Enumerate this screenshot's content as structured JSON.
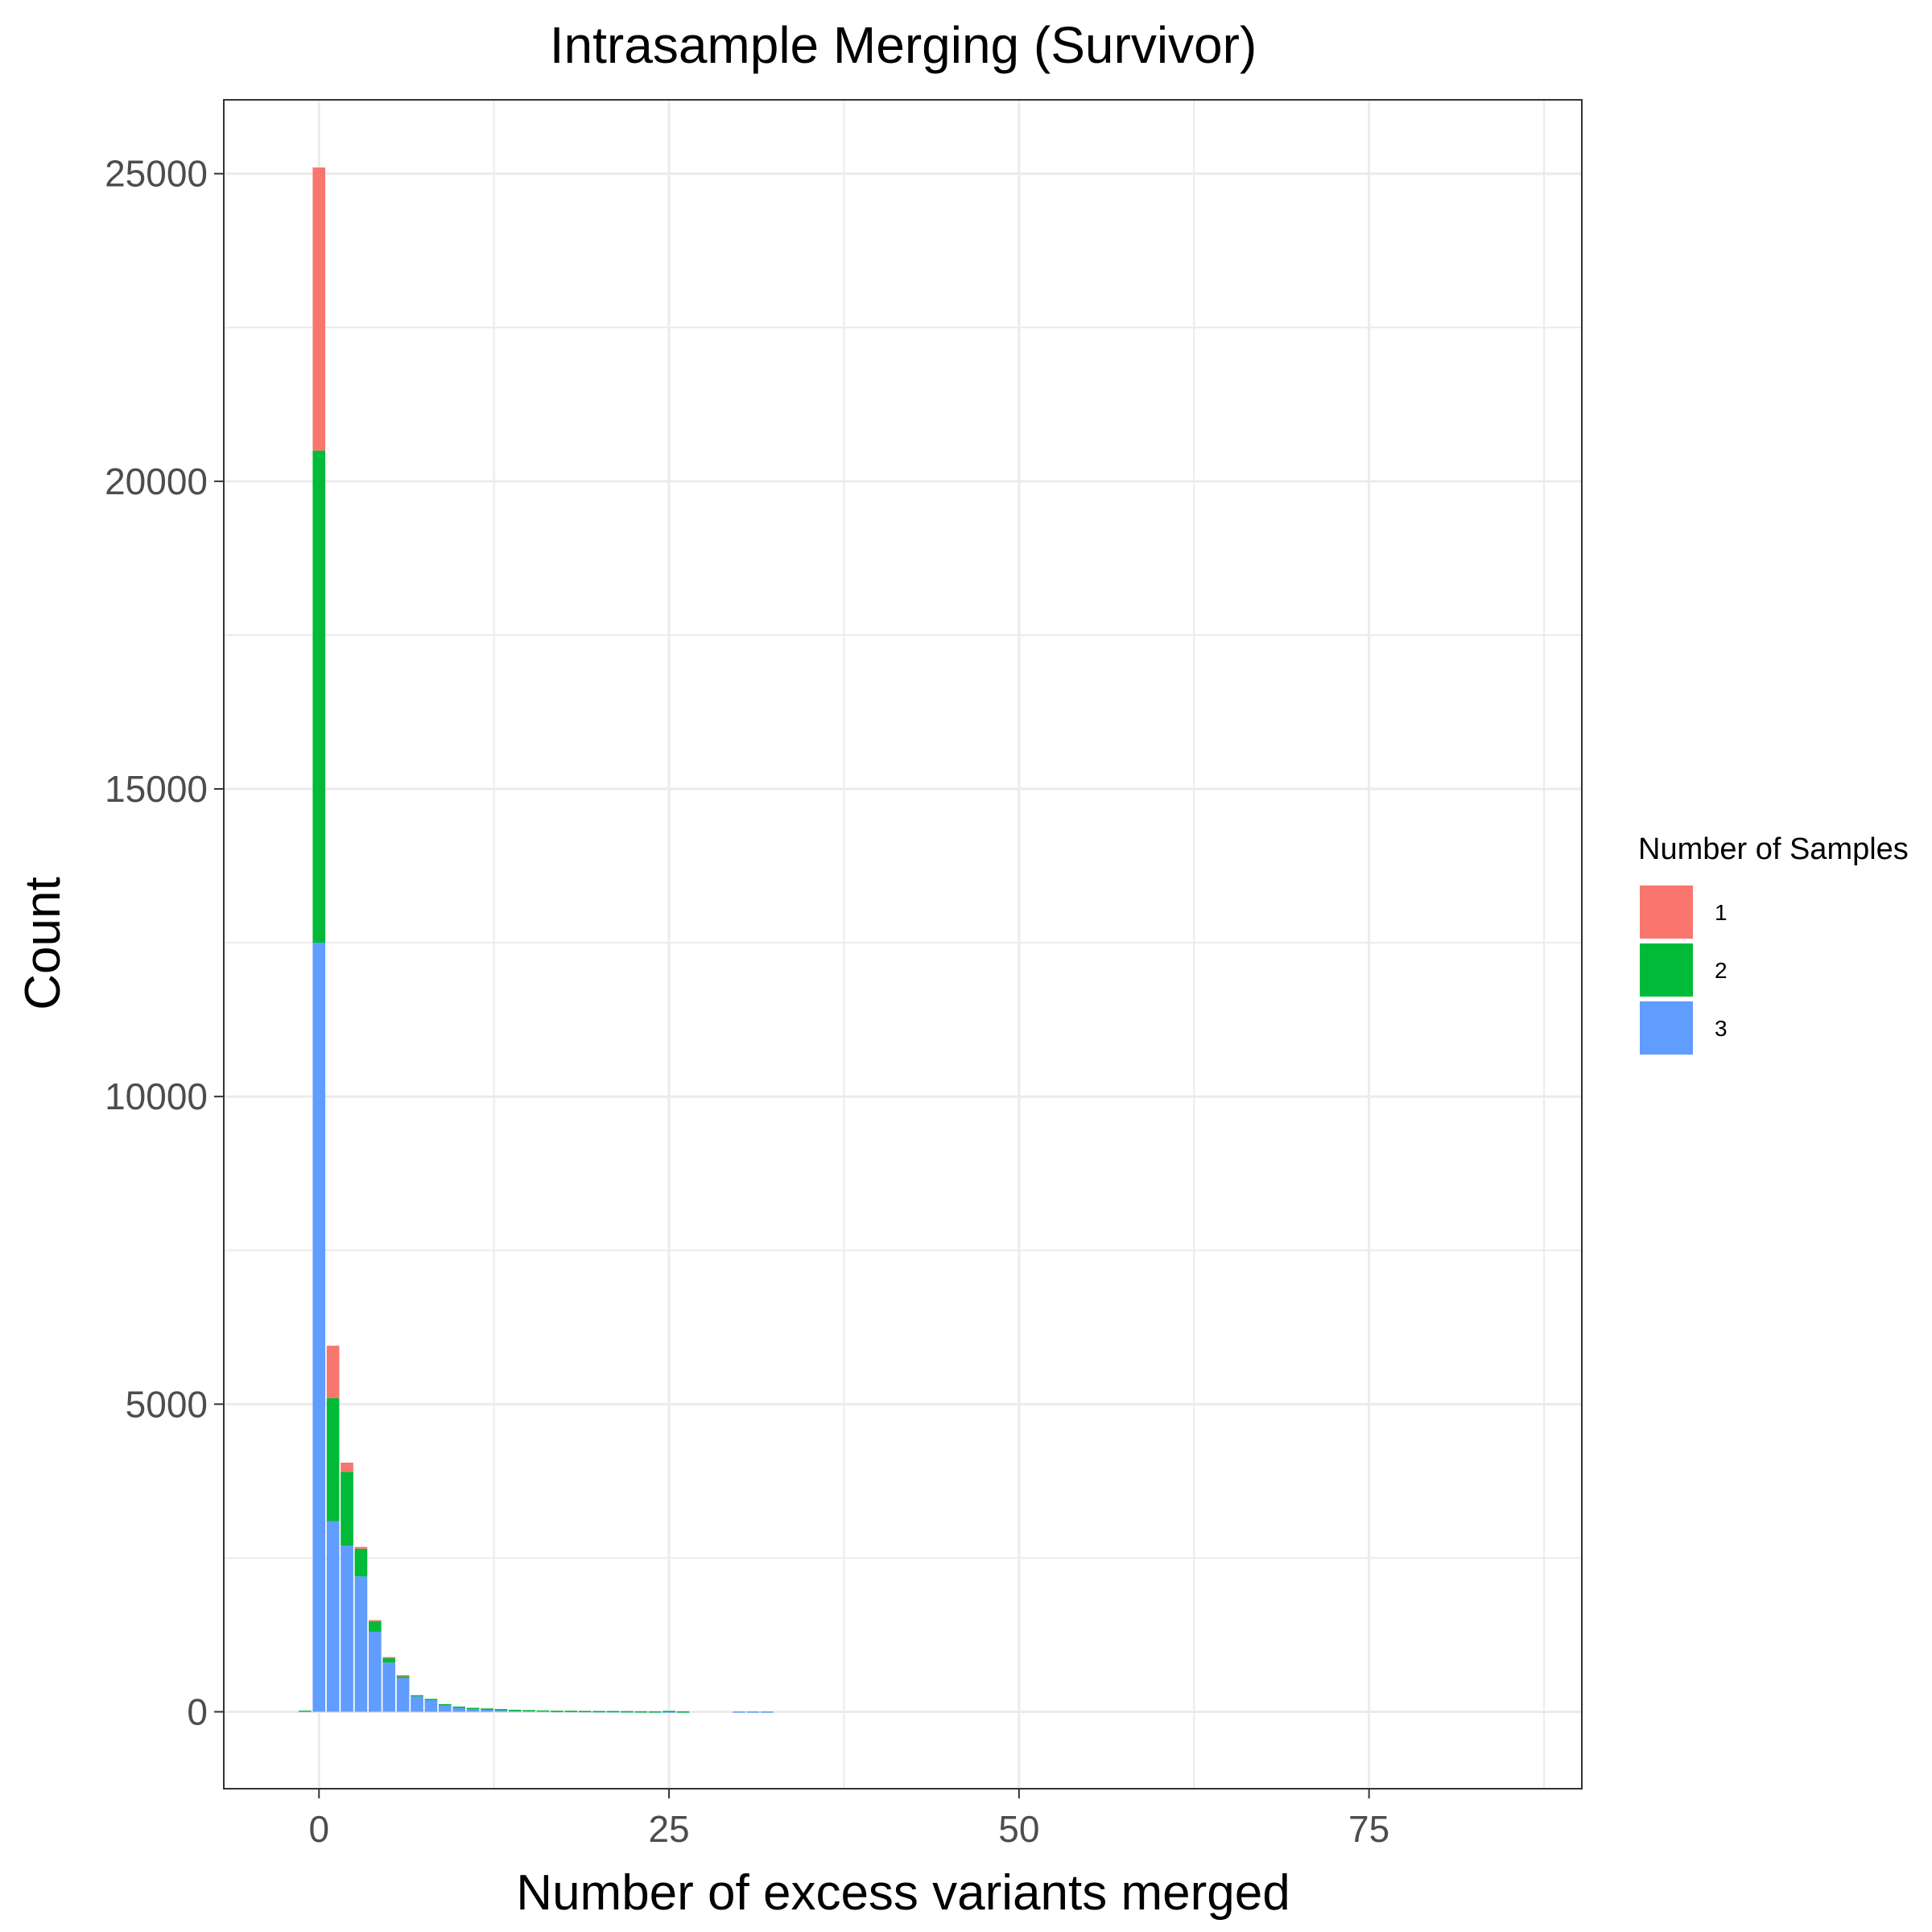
{
  "chart_data": {
    "type": "bar",
    "stacked": true,
    "title": "Intrasample Merging (Survivor)",
    "xlabel": "Number of excess variants merged",
    "ylabel": "Count",
    "xlim": [
      -6.8,
      90.2
    ],
    "ylim": [
      -1250,
      26200
    ],
    "xticks": [
      0,
      25,
      50,
      75
    ],
    "yticks": [
      0,
      5000,
      10000,
      15000,
      20000,
      25000
    ],
    "grid": true,
    "legend": {
      "title": "Number of Samples",
      "placement": "right",
      "entries": [
        "1",
        "2",
        "3"
      ]
    },
    "colors": {
      "1": "#F8766D",
      "2": "#00BA38",
      "3": "#619CFF"
    },
    "x": [
      -1,
      0,
      1,
      2,
      3,
      4,
      5,
      6,
      7,
      8,
      9,
      10,
      11,
      12,
      13,
      14,
      15,
      16,
      17,
      18,
      19,
      20,
      21,
      22,
      23,
      24,
      25,
      26,
      30,
      31,
      32
    ],
    "series": [
      {
        "name": "1",
        "values": [
          0,
          4600,
          850,
          150,
          30,
          20,
          10,
          5,
          0,
          0,
          0,
          0,
          0,
          0,
          0,
          0,
          0,
          0,
          0,
          0,
          0,
          0,
          0,
          0,
          0,
          0,
          0,
          0,
          0,
          0,
          0
        ]
      },
      {
        "name": "2",
        "values": [
          20,
          8000,
          2000,
          1200,
          450,
          170,
          80,
          40,
          20,
          10,
          5,
          5,
          5,
          5,
          5,
          3,
          3,
          2,
          2,
          2,
          2,
          2,
          2,
          2,
          2,
          2,
          10,
          2,
          0,
          0,
          0
        ]
      },
      {
        "name": "3",
        "values": [
          0,
          12500,
          3100,
          2700,
          2200,
          1300,
          800,
          550,
          250,
          200,
          120,
          80,
          60,
          50,
          40,
          30,
          25,
          20,
          15,
          15,
          12,
          10,
          10,
          8,
          6,
          5,
          5,
          5,
          5,
          5,
          5
        ]
      }
    ]
  }
}
